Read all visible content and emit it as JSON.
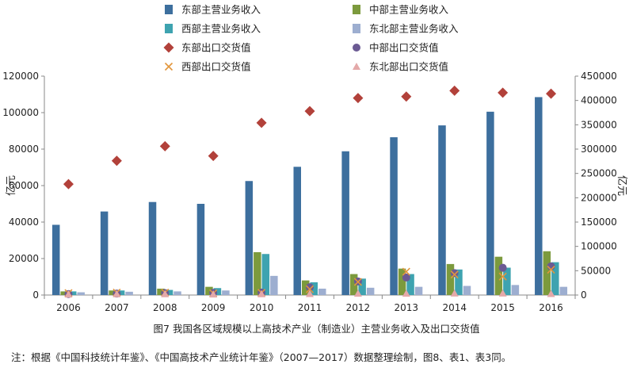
{
  "caption": "图7   我国各区域规模以上高技术产业（制造业）主营业务收入及出口交货值",
  "note": "注：根据《中国科技统计年鉴》、《中国高技术产业统计年鉴》（2007—2017）数据整理绘制，图8、表1、表3同。",
  "colors": {
    "east_bar": "#3d6f9e",
    "central_bar": "#7c9a3d",
    "west_bar": "#3ea3b0",
    "northeast_bar": "#9daed0",
    "east_export": "#b2413a",
    "central_export": "#6b5a93",
    "west_export": "#e2963c",
    "northeast_export": "#e4a9a9",
    "axis": "#888888"
  },
  "chart_data": {
    "type": "bar",
    "categories": [
      "2006",
      "2007",
      "2008",
      "2009",
      "2010",
      "2011",
      "2012",
      "2013",
      "2014",
      "2015",
      "2016"
    ],
    "ylabel_left": "亿元",
    "ylabel_right": "亿元",
    "ylim_left": [
      0,
      120000
    ],
    "ylim_right": [
      0,
      450000
    ],
    "yticks_left": [
      "0",
      "20000",
      "40000",
      "60000",
      "80000",
      "100000",
      "120000"
    ],
    "yticks_right": [
      "0",
      "50000",
      "100000",
      "150000",
      "200000",
      "250000",
      "300000",
      "350000",
      "400000",
      "450000"
    ],
    "legend_position": "top",
    "grid": false,
    "bar_series": [
      {
        "name": "东部主营业务收入",
        "values": [
          38500,
          45800,
          51000,
          50000,
          62500,
          70300,
          78800,
          86500,
          93000,
          100500,
          108500
        ]
      },
      {
        "name": "中部主营业务收入",
        "values": [
          2000,
          2500,
          3500,
          4500,
          23500,
          8000,
          11500,
          14500,
          17000,
          21000,
          24000
        ]
      },
      {
        "name": "西部主营业务收入",
        "values": [
          2000,
          2500,
          2800,
          3800,
          22500,
          7000,
          9000,
          11500,
          14000,
          15000,
          18000
        ]
      },
      {
        "name": "东北部主营业务收入",
        "values": [
          1500,
          1800,
          2000,
          2500,
          10500,
          3500,
          4000,
          4500,
          5000,
          5500,
          4500
        ]
      }
    ],
    "marker_series": [
      {
        "name": "东部出口交货值",
        "marker": "diamond",
        "values": [
          228000,
          276000,
          306000,
          286000,
          354000,
          378000,
          405000,
          408000,
          420000,
          416000,
          414000
        ]
      },
      {
        "name": "中部出口交货值",
        "marker": "circle",
        "values": [
          2000,
          3000,
          4000,
          4500,
          5000,
          16000,
          28000,
          36000,
          45000,
          56000,
          59000
        ]
      },
      {
        "name": "西部出口交货值",
        "marker": "x",
        "values": [
          4000,
          5000,
          5000,
          3500,
          4500,
          12000,
          27000,
          48000,
          42000,
          38000,
          52000
        ]
      },
      {
        "name": "东北部出口交货值",
        "marker": "triangle",
        "values": [
          1500,
          2000,
          2000,
          1500,
          2000,
          2500,
          3000,
          3000,
          3500,
          3500,
          2500
        ]
      }
    ]
  }
}
